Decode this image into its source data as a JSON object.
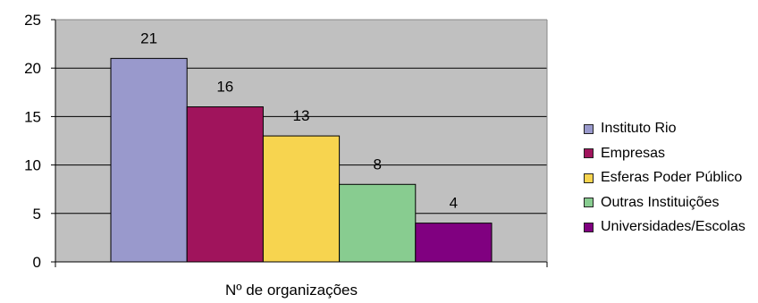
{
  "chart_data": {
    "type": "bar",
    "title": "",
    "xlabel": "Nº de organizações",
    "ylabel": "",
    "ylim": [
      0,
      25
    ],
    "yticks": [
      0,
      5,
      10,
      15,
      20,
      25
    ],
    "grid": true,
    "plot_background": "#c0c0c0",
    "legend_position": "right",
    "series": [
      {
        "name": "Instituto Rio",
        "values": [
          21
        ],
        "color": "#9999cc"
      },
      {
        "name": "Empresas",
        "values": [
          16
        ],
        "color": "#a0145c"
      },
      {
        "name": "Esferas Poder Público",
        "values": [
          13
        ],
        "color": "#f7d44f"
      },
      {
        "name": "Outras Instituições",
        "values": [
          8
        ],
        "color": "#88cc90"
      },
      {
        "name": "Universidades/Escolas",
        "values": [
          4
        ],
        "color": "#800080"
      }
    ]
  }
}
